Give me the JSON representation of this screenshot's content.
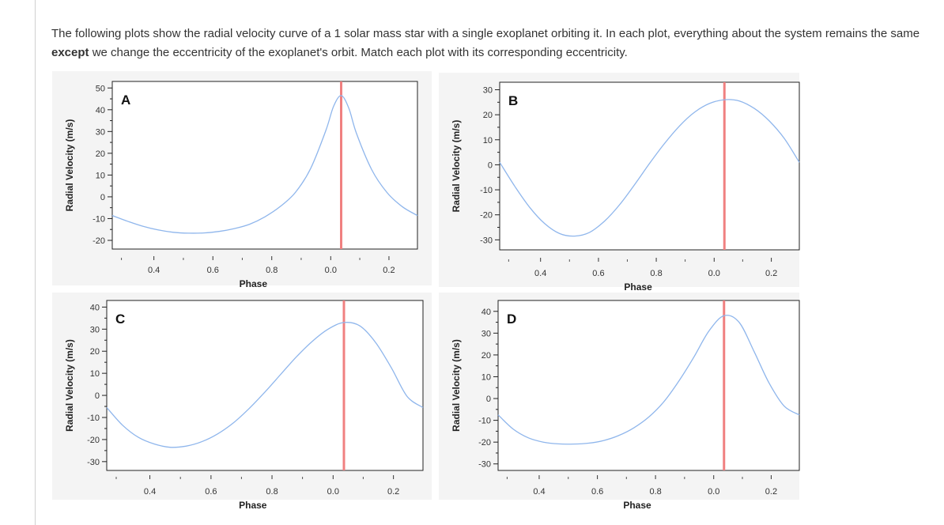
{
  "question": {
    "text_before": "The following plots show the radial velocity curve of a 1 solar mass star with a single exoplanet orbiting it. In each plot, everything about the system remains the same ",
    "emphasis": "except",
    "text_after": " we change the eccentricity of the exoplanet's orbit. Match each plot with its corresponding eccentricity."
  },
  "colors": {
    "curve": "#8fb6ec",
    "marker_line": "#f08080",
    "panel_bg": "#f4f4f4"
  },
  "chart_data": [
    {
      "type": "line",
      "panel_label": "A",
      "xlabel": "Phase",
      "ylabel": "Radial Velocity (m/s)",
      "x_tick_labels": [
        "0.4",
        "0.6",
        "0.8",
        "0.0",
        "0.2"
      ],
      "y_ticks": [
        -20,
        -10,
        0,
        10,
        20,
        30,
        40,
        50
      ],
      "ylim": [
        -24,
        53
      ],
      "marker_line_label": "0.0",
      "x": [
        "0.25",
        "0.3",
        "0.35",
        "0.4",
        "0.45",
        "0.5",
        "0.55",
        "0.6",
        "0.65",
        "0.7",
        "0.75",
        "0.8",
        "0.85",
        "0.9",
        "0.95",
        "0.975",
        "0.0",
        "0.025",
        "0.05",
        "0.1",
        "0.15",
        "0.2",
        "0.25"
      ],
      "y": [
        -8.6,
        -11.2,
        -13.5,
        -15.2,
        -16.3,
        -16.7,
        -16.6,
        -15.9,
        -14.6,
        -12.6,
        -9.2,
        -4.5,
        2.0,
        13.0,
        30.5,
        41.5,
        46.5,
        40.8,
        29.2,
        12.5,
        2.0,
        -4.5,
        -8.6
      ]
    },
    {
      "type": "line",
      "panel_label": "B",
      "xlabel": "Phase",
      "ylabel": "Radial Velocity (m/s)",
      "x_tick_labels": [
        "0.4",
        "0.6",
        "0.8",
        "0.0",
        "0.2"
      ],
      "y_ticks": [
        -30,
        -20,
        -10,
        0,
        10,
        20,
        30
      ],
      "ylim": [
        -34,
        33
      ],
      "marker_line_label": "0.0",
      "x": [
        "0.25",
        "0.3",
        "0.35",
        "0.4",
        "0.45",
        "0.5",
        "0.55",
        "0.6",
        "0.65",
        "0.7",
        "0.75",
        "0.8",
        "0.85",
        "0.9",
        "0.95",
        "0.0",
        "0.05",
        "0.1",
        "0.15",
        "0.2",
        "0.25"
      ],
      "y": [
        1.0,
        -8.5,
        -17.0,
        -23.5,
        -27.5,
        -28.5,
        -27.0,
        -22.5,
        -16.0,
        -8.0,
        0.5,
        8.5,
        15.5,
        21.0,
        24.5,
        26.0,
        25.5,
        22.5,
        17.5,
        10.5,
        1.0
      ]
    },
    {
      "type": "line",
      "panel_label": "C",
      "xlabel": "Phase",
      "ylabel": "Radial Velocity (m/s)",
      "x_tick_labels": [
        "0.4",
        "0.6",
        "0.8",
        "0.0",
        "0.2"
      ],
      "y_ticks": [
        -30,
        -20,
        -10,
        0,
        10,
        20,
        30,
        40
      ],
      "ylim": [
        -34,
        43
      ],
      "marker_line_label": "0.0",
      "x": [
        "0.25",
        "0.3",
        "0.35",
        "0.4",
        "0.45",
        "0.5",
        "0.55",
        "0.6",
        "0.65",
        "0.7",
        "0.75",
        "0.8",
        "0.85",
        "0.9",
        "0.95",
        "0.0",
        "0.05",
        "0.1",
        "0.15",
        "0.2",
        "0.25"
      ],
      "y": [
        -5.5,
        -13.5,
        -19.0,
        -22.0,
        -23.5,
        -23.0,
        -21.0,
        -17.5,
        -12.5,
        -6.0,
        1.5,
        9.5,
        17.5,
        24.5,
        30.0,
        33.0,
        31.5,
        24.0,
        12.5,
        -0.5,
        -5.5
      ]
    },
    {
      "type": "line",
      "panel_label": "D",
      "xlabel": "Phase",
      "ylabel": "Radial Velocity (m/s)",
      "x_tick_labels": [
        "0.4",
        "0.6",
        "0.8",
        "0.0",
        "0.2"
      ],
      "y_ticks": [
        -30,
        -20,
        -10,
        0,
        10,
        20,
        30,
        40
      ],
      "ylim": [
        -33,
        45
      ],
      "marker_line_label": "0.0",
      "x": [
        "0.25",
        "0.3",
        "0.35",
        "0.4",
        "0.45",
        "0.5",
        "0.55",
        "0.6",
        "0.65",
        "0.7",
        "0.75",
        "0.8",
        "0.85",
        "0.9",
        "0.95",
        "0.0",
        "0.05",
        "0.1",
        "0.15",
        "0.2",
        "0.25"
      ],
      "y": [
        -7.5,
        -14.0,
        -18.0,
        -20.0,
        -20.8,
        -20.9,
        -20.5,
        -19.3,
        -17.0,
        -13.5,
        -8.5,
        -1.5,
        8.0,
        19.0,
        31.0,
        38.0,
        35.0,
        21.5,
        7.0,
        -3.5,
        -7.5
      ]
    }
  ]
}
